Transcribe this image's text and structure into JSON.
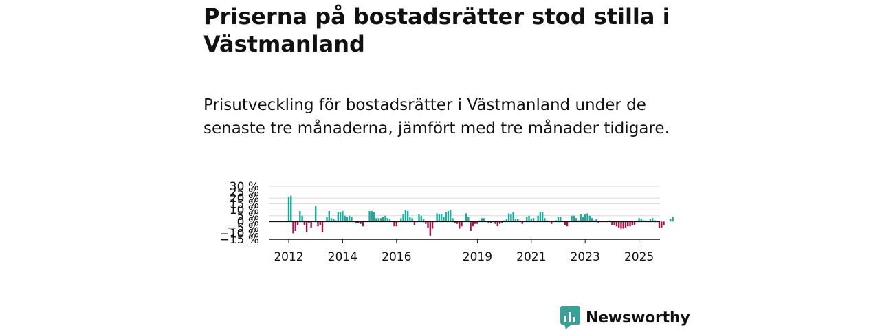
{
  "header": {
    "title": "Priserna på bostadsrätter stod stilla i Västmanland",
    "subtitle": "Prisutveckling för bostadsrätter i Västmanland under de senaste tre månaderna, jämfört med tre månader tidigare."
  },
  "brand": {
    "name": "Newsworthy",
    "color": "#3aa198"
  },
  "colors": {
    "positive": "#1fa89b",
    "negative": "#a3124a",
    "grid": "#d9d9d9",
    "axis": "#111111"
  },
  "chart_data": {
    "type": "bar",
    "title": "",
    "xlabel": "",
    "ylabel": "",
    "ylim": [
      -15,
      30
    ],
    "y_ticks": [
      -15,
      -10,
      -5,
      0,
      5,
      10,
      15,
      20,
      25,
      30
    ],
    "y_tick_labels": [
      "−15 %",
      "−10 %",
      "−5 %",
      "0 %",
      "5 %",
      "10 %",
      "15 %",
      "20 %",
      "25 %",
      "30 %"
    ],
    "x_ticks": [
      2012,
      2014,
      2016,
      2019,
      2021,
      2023,
      2025
    ],
    "x_tick_labels": [
      "2012",
      "2014",
      "2016",
      "2019",
      "2021",
      "2023",
      "2025"
    ],
    "annotation": "0 %",
    "grid": true,
    "start_year": 2012,
    "start_month": 1,
    "values": [
      21,
      22,
      -10,
      -8,
      -3,
      9,
      5,
      -3,
      -9,
      -1,
      -5,
      0,
      13,
      -4,
      -3,
      -9,
      0,
      4,
      9,
      3,
      2,
      1,
      8,
      8,
      9,
      5,
      4,
      5,
      4,
      0,
      -1,
      -1,
      -2,
      -4,
      0,
      0,
      9,
      9,
      8,
      3,
      3,
      3,
      4,
      5,
      3,
      2,
      0,
      -4,
      -4,
      0,
      3,
      6,
      10,
      9,
      4,
      3,
      -3,
      0,
      6,
      5,
      2,
      -2,
      -5,
      -12,
      -6,
      0,
      7,
      6,
      6,
      4,
      8,
      9,
      10,
      3,
      -1,
      -2,
      -6,
      -4,
      0,
      7,
      4,
      -8,
      -4,
      -2,
      -2,
      1,
      3,
      3,
      0,
      -1,
      -1,
      0,
      -2,
      -4,
      -2,
      -1,
      1,
      2,
      7,
      6,
      8,
      2,
      2,
      1,
      -2,
      0,
      4,
      5,
      2,
      3,
      0,
      5,
      8,
      8,
      3,
      1,
      0,
      -2,
      0,
      1,
      4,
      4,
      0,
      -3,
      -4,
      0,
      5,
      5,
      3,
      1,
      6,
      4,
      6,
      7,
      5,
      3,
      1,
      2,
      -1,
      0,
      0,
      0,
      0,
      1,
      -3,
      -3,
      -4,
      -5,
      -6,
      -6,
      -5,
      -4,
      -4,
      -3,
      -3,
      0,
      3,
      2,
      1,
      1,
      0,
      2,
      3,
      1,
      0,
      -5,
      -5,
      -3,
      0,
      0,
      2,
      4,
      3,
      2,
      1,
      0,
      -3,
      -3,
      -3,
      0
    ]
  }
}
